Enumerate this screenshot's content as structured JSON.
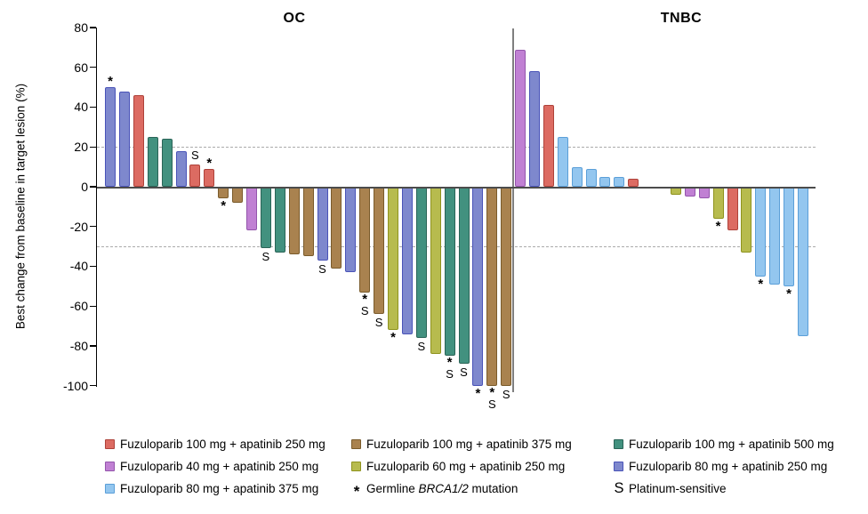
{
  "chart_data": {
    "type": "bar",
    "subtype": "waterfall",
    "title": "",
    "ylabel": "Best change from baseline in target lesion (%)",
    "ylim": [
      -100,
      80
    ],
    "yticks": [
      80,
      60,
      40,
      20,
      0,
      -20,
      -40,
      -60,
      -80,
      -100
    ],
    "reference_lines": [
      20,
      -30
    ],
    "grid": "off",
    "legend_position": "bottom",
    "groups": {
      "f100a250": {
        "label": "Fuzuloparib 100 mg + apatinib 250 mg",
        "fill": "#DC6B62",
        "border": "#AE423A"
      },
      "f40a250": {
        "label": "Fuzuloparib 40 mg + apatinib 250 mg",
        "fill": "#C080D3",
        "border": "#9455AC"
      },
      "f80a375": {
        "label": "Fuzuloparib 80 mg + apatinib 375 mg",
        "fill": "#93C6EF",
        "border": "#5B9FD8"
      },
      "f100a375": {
        "label": "Fuzuloparib 100 mg + apatinib 375 mg",
        "fill": "#A9824F",
        "border": "#7A5B2B"
      },
      "f60a250": {
        "label": "Fuzuloparib 60 mg + apatinib 250 mg",
        "fill": "#B7BB4E",
        "border": "#8F931E"
      },
      "f100a500": {
        "label": "Fuzuloparib 100 mg + apatinib 500 mg",
        "fill": "#42917F",
        "border": "#2A6457"
      },
      "f80a250": {
        "label": "Fuzuloparib 80 mg + apatinib 250 mg",
        "fill": "#7E88CD",
        "border": "#4953B8"
      }
    },
    "panels": [
      {
        "title": "OC",
        "bars": [
          {
            "value": 50,
            "group": "f80a250",
            "markers": "*"
          },
          {
            "value": 48,
            "group": "f80a250"
          },
          {
            "value": 46,
            "group": "f100a250"
          },
          {
            "value": 25,
            "group": "f100a500"
          },
          {
            "value": 24,
            "group": "f100a500"
          },
          {
            "value": 18,
            "group": "f80a250"
          },
          {
            "value": 11,
            "group": "f100a250",
            "markers": "S"
          },
          {
            "value": 9,
            "group": "f100a250",
            "markers": "*"
          },
          {
            "value": -6,
            "group": "f100a375",
            "markers": "*"
          },
          {
            "value": -8,
            "group": "f100a375"
          },
          {
            "value": -22,
            "group": "f40a250"
          },
          {
            "value": -31,
            "group": "f100a500",
            "markers": "S"
          },
          {
            "value": -33,
            "group": "f100a500"
          },
          {
            "value": -34,
            "group": "f100a375"
          },
          {
            "value": -35,
            "group": "f100a375"
          },
          {
            "value": -37,
            "group": "f80a250",
            "markers": "S"
          },
          {
            "value": -41,
            "group": "f100a375"
          },
          {
            "value": -43,
            "group": "f80a250"
          },
          {
            "value": -53,
            "group": "f100a375",
            "markers": "*S"
          },
          {
            "value": -64,
            "group": "f100a375",
            "markers": "S"
          },
          {
            "value": -72,
            "group": "f60a250",
            "markers": "*"
          },
          {
            "value": -74,
            "group": "f80a250"
          },
          {
            "value": -76,
            "group": "f100a500",
            "markers": "S"
          },
          {
            "value": -84,
            "group": "f60a250"
          },
          {
            "value": -85,
            "group": "f100a500",
            "markers": "*S"
          },
          {
            "value": -89,
            "group": "f100a500",
            "markers": "S"
          },
          {
            "value": -100,
            "group": "f80a250",
            "markers": "*"
          },
          {
            "value": -100,
            "group": "f100a375",
            "markers": "*S"
          },
          {
            "value": -100,
            "group": "f100a375",
            "markers": "S"
          }
        ]
      },
      {
        "title": "TNBC",
        "bars": [
          {
            "value": 69,
            "group": "f40a250"
          },
          {
            "value": 58,
            "group": "f80a250"
          },
          {
            "value": 41,
            "group": "f100a250"
          },
          {
            "value": 25,
            "group": "f80a375"
          },
          {
            "value": 10,
            "group": "f80a375"
          },
          {
            "value": 9,
            "group": "f80a375"
          },
          {
            "value": 5,
            "group": "f80a375"
          },
          {
            "value": 5,
            "group": "f80a375"
          },
          {
            "value": 4,
            "group": "f100a250"
          },
          {
            "value": 0,
            "group": null
          },
          {
            "value": 0,
            "group": null
          },
          {
            "value": -4,
            "group": "f60a250"
          },
          {
            "value": -5,
            "group": "f40a250"
          },
          {
            "value": -6,
            "group": "f40a250"
          },
          {
            "value": -16,
            "group": "f60a250",
            "markers": "*"
          },
          {
            "value": -22,
            "group": "f100a250"
          },
          {
            "value": -33,
            "group": "f60a250"
          },
          {
            "value": -45,
            "group": "f80a375",
            "markers": "*"
          },
          {
            "value": -49,
            "group": "f80a375"
          },
          {
            "value": -50,
            "group": "f80a375",
            "markers": "*"
          },
          {
            "value": -75,
            "group": "f80a375"
          }
        ]
      }
    ],
    "markers_legend": {
      "star": {
        "symbol": "*",
        "label_runs": [
          {
            "t": "Germline "
          },
          {
            "t": "BRCA1/2",
            "italic": true
          },
          {
            "t": " mutation"
          }
        ]
      },
      "s": {
        "symbol": "S",
        "label": "Platinum-sensitive"
      }
    },
    "legend_columns": [
      [
        "f100a250",
        "f40a250",
        "f80a375"
      ],
      [
        "f100a375",
        "f60a250",
        "star"
      ],
      [
        "f100a500",
        "f80a250",
        "s"
      ]
    ]
  }
}
